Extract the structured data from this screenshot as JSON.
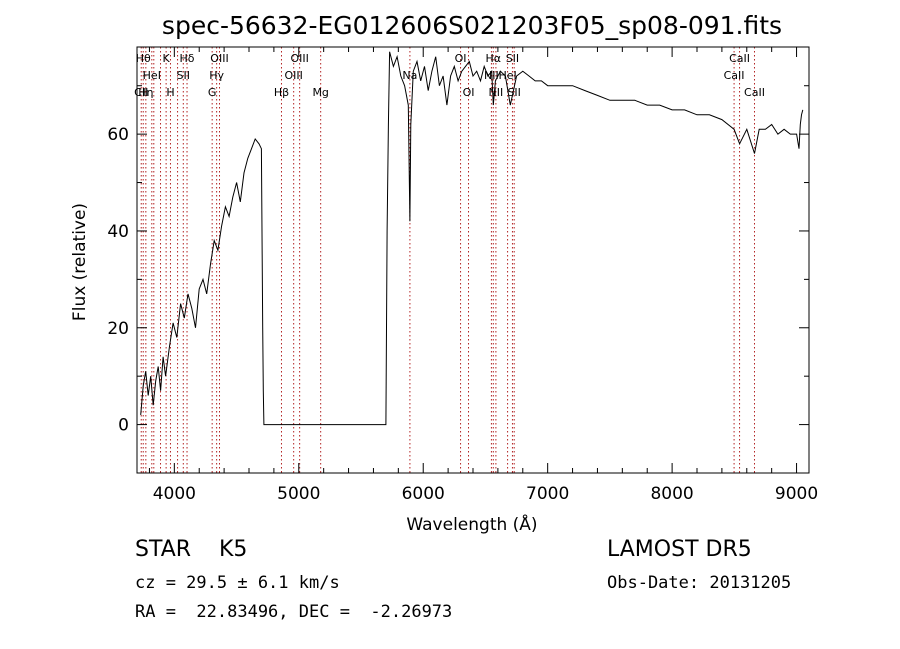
{
  "chart_data": {
    "type": "line",
    "title": "spec-56632-EG012606S021203F05_sp08-091.fits",
    "xlabel": "Wavelength (Å)",
    "ylabel": "Flux (relative)",
    "xlim": [
      3700,
      9100
    ],
    "ylim": [
      -10,
      78
    ],
    "xticks": [
      4000,
      5000,
      6000,
      7000,
      8000,
      9000
    ],
    "yticks": [
      0,
      20,
      40,
      60
    ],
    "grid": false,
    "line_color": "#000000",
    "marker_color": "#b22222",
    "series": [
      {
        "x": [
          3730,
          3750,
          3770,
          3790,
          3810,
          3830,
          3850,
          3870,
          3890,
          3910,
          3930,
          3960,
          3990,
          4020,
          4050,
          4080,
          4110,
          4140,
          4170,
          4200,
          4230,
          4260,
          4290,
          4320,
          4350,
          4380,
          4410,
          4440,
          4470,
          4500,
          4530,
          4560,
          4590,
          4620,
          4650,
          4680,
          4700,
          4710,
          4715,
          4720,
          4730,
          5700,
          5710,
          5720,
          5730,
          5760,
          5790,
          5820,
          5850,
          5880,
          5893,
          5900,
          5920,
          5950,
          5980,
          6010,
          6040,
          6070,
          6100,
          6130,
          6160,
          6190,
          6220,
          6250,
          6280,
          6310,
          6340,
          6370,
          6400,
          6430,
          6460,
          6490,
          6520,
          6550,
          6563,
          6580,
          6620,
          6660,
          6700,
          6750,
          6800,
          6850,
          6900,
          6950,
          7000,
          7100,
          7200,
          7300,
          7400,
          7500,
          7600,
          7700,
          7800,
          7900,
          8000,
          8100,
          8200,
          8300,
          8400,
          8498,
          8542,
          8600,
          8662,
          8700,
          8750,
          8800,
          8850,
          8900,
          8950,
          9000,
          9020,
          9030,
          9040,
          9050
        ],
        "y": [
          2,
          8,
          11,
          6,
          10,
          4,
          9,
          12,
          7,
          14,
          10,
          16,
          21,
          18,
          25,
          22,
          27,
          24,
          20,
          28,
          30,
          27,
          33,
          38,
          36,
          41,
          45,
          43,
          47,
          50,
          46,
          52,
          55,
          57,
          59,
          58,
          57,
          20,
          7,
          0,
          0,
          0,
          40,
          62,
          77,
          74,
          76,
          72,
          70,
          66,
          42,
          62,
          73,
          75,
          71,
          74,
          69,
          73,
          76,
          70,
          72,
          66,
          72,
          74,
          71,
          73,
          74,
          75,
          72,
          73,
          71,
          74,
          72,
          73,
          66,
          71,
          73,
          72,
          66,
          72,
          73,
          72,
          71,
          71,
          70,
          70,
          70,
          69,
          68,
          67,
          67,
          67,
          66,
          66,
          65,
          65,
          64,
          64,
          63,
          61,
          58,
          61,
          56,
          61,
          61,
          62,
          60,
          61,
          60,
          60,
          57,
          62,
          64,
          65
        ]
      }
    ],
    "lines": [
      {
        "wl": 3734,
        "label": "CII",
        "row": 2
      },
      {
        "wl": 3750,
        "label": "Hθ",
        "row": 0
      },
      {
        "wl": 3771,
        "label": "Hη",
        "row": 2
      },
      {
        "wl": 3819,
        "label": "HeI",
        "row": 1
      },
      {
        "wl": 3835,
        "label": "",
        "row": -1
      },
      {
        "wl": 3889,
        "label": "",
        "row": -1
      },
      {
        "wl": 3934,
        "label": "K",
        "row": 0
      },
      {
        "wl": 3969,
        "label": "H",
        "row": 2
      },
      {
        "wl": 4026,
        "label": "",
        "row": -1
      },
      {
        "wl": 4072,
        "label": "SII",
        "row": 1
      },
      {
        "wl": 4102,
        "label": "Hδ",
        "row": 0
      },
      {
        "wl": 4304,
        "label": "G",
        "row": 2
      },
      {
        "wl": 4340,
        "label": "Hγ",
        "row": 1
      },
      {
        "wl": 4363,
        "label": "OIII",
        "row": 0
      },
      {
        "wl": 4861,
        "label": "Hβ",
        "row": 2
      },
      {
        "wl": 4959,
        "label": "OIII",
        "row": 1
      },
      {
        "wl": 5007,
        "label": "OIII",
        "row": 0
      },
      {
        "wl": 5176,
        "label": "Mg",
        "row": 2
      },
      {
        "wl": 5893,
        "label": "Na",
        "row": 1
      },
      {
        "wl": 6300,
        "label": "OI",
        "row": 0
      },
      {
        "wl": 6364,
        "label": "OI",
        "row": 2
      },
      {
        "wl": 6548,
        "label": "NII",
        "row": 1
      },
      {
        "wl": 6563,
        "label": "Hα",
        "row": 0
      },
      {
        "wl": 6584,
        "label": "NII",
        "row": 2
      },
      {
        "wl": 6678,
        "label": "HeI",
        "row": 1
      },
      {
        "wl": 6717,
        "label": "SII",
        "row": 0
      },
      {
        "wl": 6731,
        "label": "SII",
        "row": 2
      },
      {
        "wl": 8498,
        "label": "CaII",
        "row": 1
      },
      {
        "wl": 8542,
        "label": "CaII",
        "row": 0
      },
      {
        "wl": 8662,
        "label": "CaII",
        "row": 2
      }
    ]
  },
  "info": {
    "class_label": "STAR    K5",
    "survey_label": "LAMOST DR5",
    "cz_label": "cz = 29.5 ± 6.1 km/s",
    "obs_date_label": "Obs-Date: 20131205",
    "radec_label": "RA =  22.83496, DEC =  -2.26973"
  }
}
